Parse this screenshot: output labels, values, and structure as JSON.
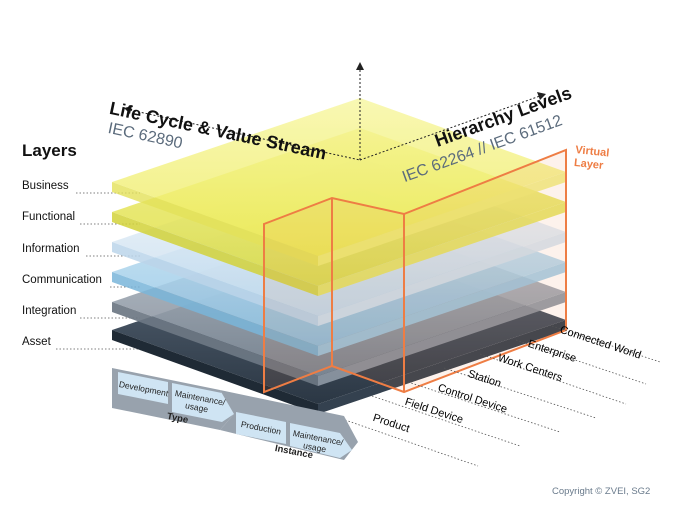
{
  "layers_title": "Layers",
  "layers": [
    "Business",
    "Functional",
    "Information",
    "Communication",
    "Integration",
    "Asset"
  ],
  "lifecycle": {
    "title": "Life Cycle & Value Stream",
    "standard": "IEC 62890",
    "type_phase": {
      "label": "Type",
      "steps": [
        "Development",
        "Maintenance/ usage"
      ]
    },
    "instance_phase": {
      "label": "Instance",
      "steps": [
        "Production",
        "Maintenance/ usage"
      ]
    }
  },
  "hierarchy": {
    "title": "Hierarchy Levels",
    "standard": "IEC 62264 // IEC 61512",
    "levels": [
      "Product",
      "Field Device",
      "Control Device",
      "Station",
      "Work Centers",
      "Enterprise",
      "Connected World"
    ]
  },
  "virtual_layer": "Virtual Layer",
  "copyright": "Copyright © ZVEI, SG2",
  "colors": {
    "business": "#f1f06a",
    "functional": "#e9ea4c",
    "information": "#d6e7f3",
    "communication": "#a9d3ec",
    "integration": "#9aa3ae",
    "asset": "#3c4a5a",
    "virtual_layer": "#ee7d44",
    "phase_box": "#cfe4f3"
  }
}
